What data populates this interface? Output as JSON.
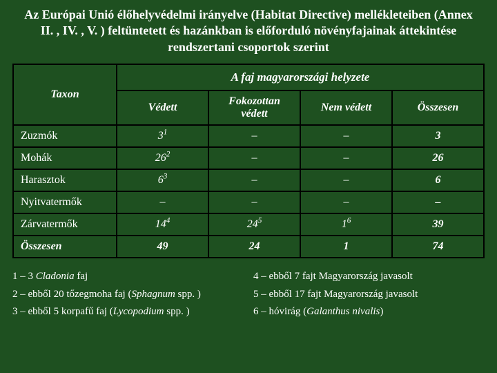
{
  "title": "Az Európai Unió élőhelyvédelmi irányelve (Habitat Directive) mellékleteiben (Annex II. , IV. , V. ) feltüntetett és hazánkban is előforduló növényfajainak áttekintése rendszertani csoportok szerint",
  "table": {
    "taxon_label": "Taxon",
    "group_header": "A faj magyarországi helyzete",
    "columns": [
      "Védett",
      "Fokozottan védett",
      "Nem védett",
      "Összesen"
    ],
    "rows": [
      {
        "label": "Zuzmók",
        "v": "3",
        "vs": "1",
        "f": "–",
        "fs": "",
        "n": "–",
        "ns": "",
        "o": "3",
        "bold": false
      },
      {
        "label": "Mohák",
        "v": "26",
        "vs": "2",
        "f": "–",
        "fs": "",
        "n": "–",
        "ns": "",
        "o": "26",
        "bold": false
      },
      {
        "label": "Harasztok",
        "v": "6",
        "vs": "3",
        "f": "–",
        "fs": "",
        "n": "–",
        "ns": "",
        "o": "6",
        "bold": false
      },
      {
        "label": "Nyitvatermők",
        "v": "–",
        "vs": "",
        "f": "–",
        "fs": "",
        "n": "–",
        "ns": "",
        "o": "–",
        "bold": false
      },
      {
        "label": "Zárvatermők",
        "v": "14",
        "vs": "4",
        "f": "24",
        "fs": "5",
        "n": "1",
        "ns": "6",
        "o": "39",
        "bold": false
      },
      {
        "label": "Összesen",
        "v": "49",
        "vs": "",
        "f": "24",
        "fs": "",
        "n": "1",
        "ns": "",
        "o": "74",
        "bold": true
      }
    ]
  },
  "footnotes": {
    "left": [
      {
        "pre": "1 – 3 ",
        "ital": "Cladonia",
        "post": " faj"
      },
      {
        "pre": "2 – ebből 20 tőzegmoha faj (",
        "ital": "Sphagnum",
        "post": " spp. )"
      },
      {
        "pre": "3 – ebből 5 korpafű faj (",
        "ital": "Lycopodium",
        "post": " spp. )"
      }
    ],
    "right": [
      {
        "pre": "4 – ebből 7 fajt Magyarország javasolt",
        "ital": "",
        "post": ""
      },
      {
        "pre": "5 – ebből 17 fajt Magyarország javasolt",
        "ital": "",
        "post": ""
      },
      {
        "pre": "6 – hóvirág (",
        "ital": "Galanthus nivalis",
        "post": ")"
      }
    ]
  },
  "colors": {
    "background": "#1e5020",
    "text": "#ffffff",
    "border": "#000000"
  }
}
